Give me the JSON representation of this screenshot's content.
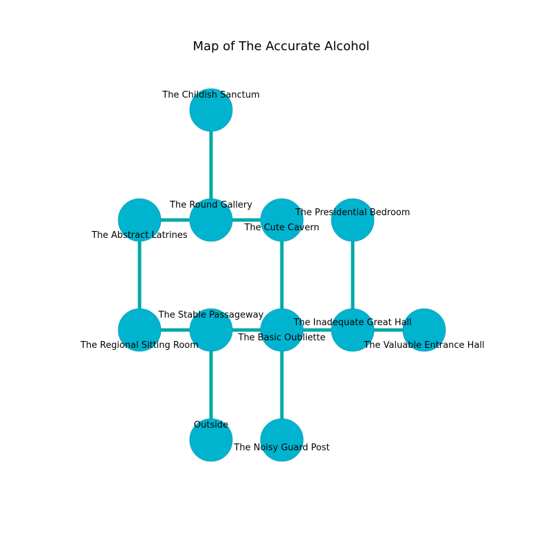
{
  "title": "Map of The Accurate Alcohol",
  "colors": {
    "node_fill": "#00b4d0",
    "node_stroke": "#0a9db5",
    "edge": "#00a8a8",
    "label": "#000000",
    "background": "#ffffff"
  },
  "rooms": [
    {
      "id": "childish-sanctum",
      "label": "The Childish Sanctum"
    },
    {
      "id": "round-gallery",
      "label": "The Round Gallery"
    },
    {
      "id": "abstract-latrines",
      "label": "The Abstract Latrines"
    },
    {
      "id": "cute-cavern",
      "label": "The Cute Cavern"
    },
    {
      "id": "presidential-bedroom",
      "label": "The Presidential Bedroom"
    },
    {
      "id": "regional-sitting-room",
      "label": "The Regional Sitting Room"
    },
    {
      "id": "stable-passageway",
      "label": "The Stable Passageway"
    },
    {
      "id": "basic-oubliette",
      "label": "The Basic Oubliette"
    },
    {
      "id": "inadequate-great-hall",
      "label": "The Inadequate Great Hall"
    },
    {
      "id": "valuable-entrance-hall",
      "label": "The Valuable Entrance Hall"
    },
    {
      "id": "outside",
      "label": "Outside"
    },
    {
      "id": "noisy-guard-post",
      "label": "The Noisy Guard Post"
    }
  ],
  "connections": [
    [
      "childish-sanctum",
      "round-gallery"
    ],
    [
      "abstract-latrines",
      "round-gallery"
    ],
    [
      "round-gallery",
      "cute-cavern"
    ],
    [
      "abstract-latrines",
      "regional-sitting-room"
    ],
    [
      "cute-cavern",
      "basic-oubliette"
    ],
    [
      "presidential-bedroom",
      "inadequate-great-hall"
    ],
    [
      "regional-sitting-room",
      "stable-passageway"
    ],
    [
      "stable-passageway",
      "basic-oubliette"
    ],
    [
      "basic-oubliette",
      "inadequate-great-hall"
    ],
    [
      "inadequate-great-hall",
      "valuable-entrance-hall"
    ],
    [
      "stable-passageway",
      "outside"
    ],
    [
      "basic-oubliette",
      "noisy-guard-post"
    ]
  ]
}
